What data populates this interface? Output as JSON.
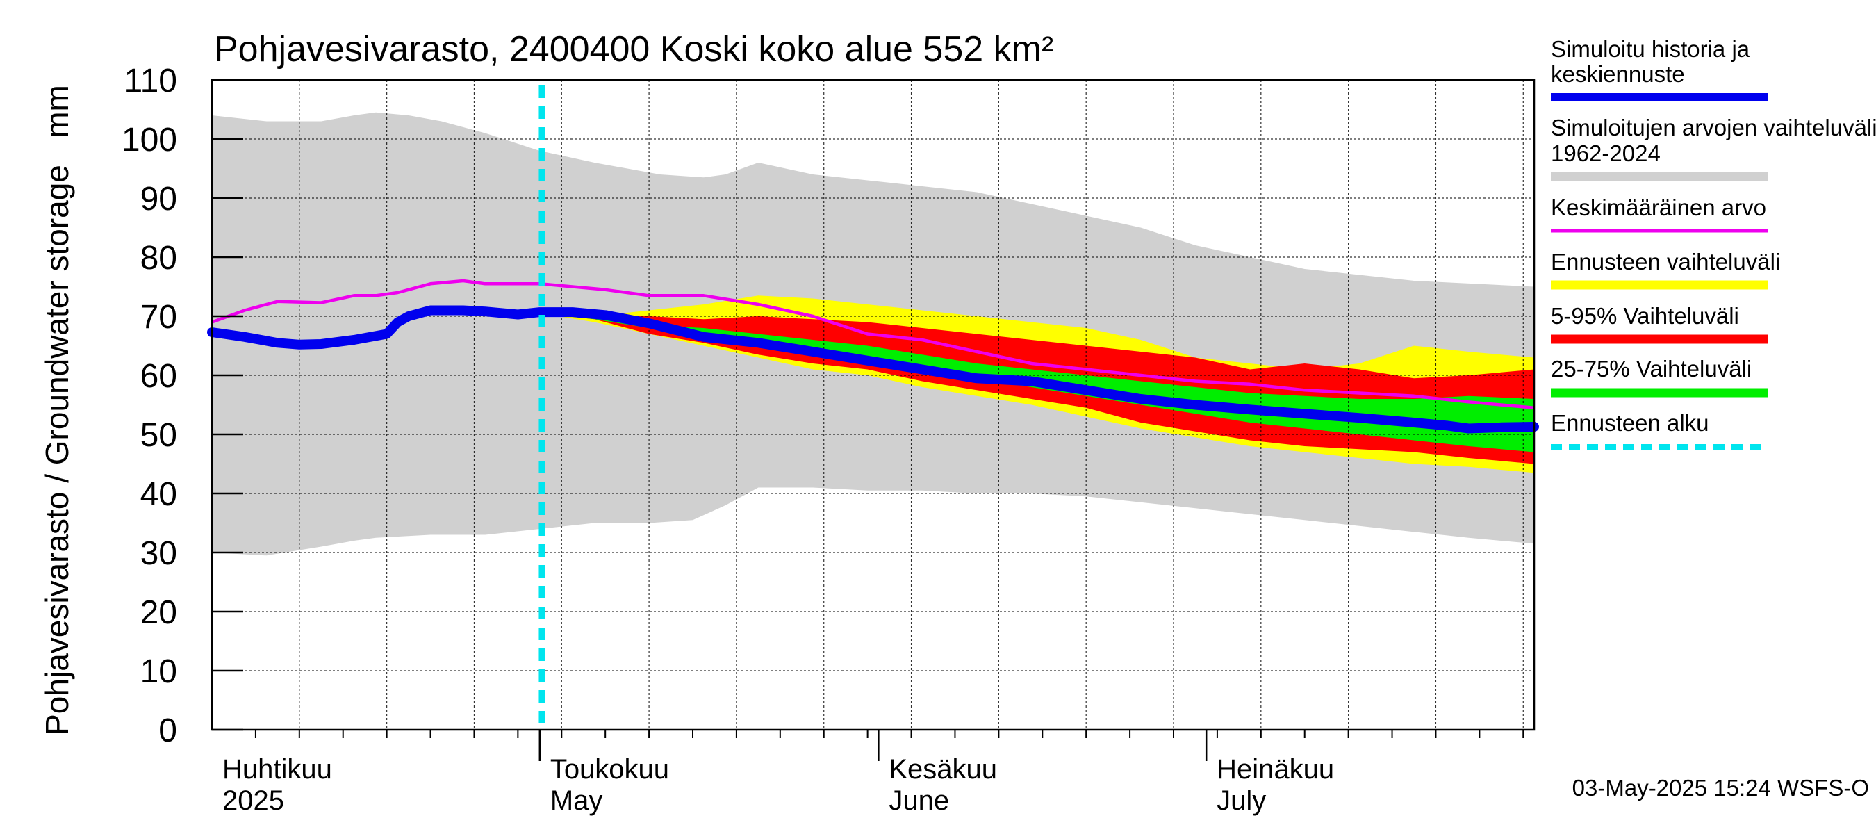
{
  "chart_data": {
    "type": "area",
    "title": "Pohjavesivarasto, 2400400 Koski koko alue 552 km²",
    "ylabel": "Pohjavesivarasto / Groundwater storage   mm",
    "ylim": [
      0,
      110
    ],
    "yticks": [
      0,
      10,
      20,
      30,
      40,
      50,
      60,
      70,
      80,
      90,
      100,
      110
    ],
    "xlim": [
      0,
      121
    ],
    "month_boundaries": [
      30,
      61,
      91
    ],
    "month_labels": [
      {
        "fi": "Huhtikuu",
        "en": "2025",
        "day": 0
      },
      {
        "fi": "Toukokuu",
        "en": "May",
        "day": 30
      },
      {
        "fi": "Kesäkuu",
        "en": "June",
        "day": 61
      },
      {
        "fi": "Heinäkuu",
        "en": "July",
        "day": 91
      }
    ],
    "forecast_start_day": 30.2,
    "timestamp": "03-May-2025 15:24 WSFS-O",
    "legend": [
      {
        "label": "Simuloitu historia ja keskiennuste",
        "color": "#0000ee",
        "style": "line"
      },
      {
        "label": "Simuloitujen arvojen vaihteluväli 1962-2024",
        "color": "#d0d0d0",
        "style": "band"
      },
      {
        "label": "Keskimääräinen arvo",
        "color": "#ee00ee",
        "style": "line"
      },
      {
        "label": "Ennusteen vaihteluväli",
        "color": "#ffff00",
        "style": "band"
      },
      {
        "label": "5-95% Vaihteluväli",
        "color": "#ff0000",
        "style": "band"
      },
      {
        "label": "25-75% Vaihteluväli",
        "color": "#00ee00",
        "style": "band"
      },
      {
        "label": "Ennusteen alku",
        "color": "#00e5ee",
        "style": "dashed"
      }
    ],
    "series": [
      {
        "name": "hist_upper",
        "x": [
          0,
          5,
          10,
          13,
          15,
          18,
          21,
          25,
          30,
          35,
          41,
          45,
          47,
          50,
          55,
          60,
          65,
          70,
          75,
          80,
          85,
          90,
          95,
          100,
          110,
          121
        ],
        "values": [
          104,
          103,
          103,
          104,
          104.5,
          104,
          103,
          101,
          98,
          96,
          94,
          93.5,
          94,
          96,
          94,
          93,
          92,
          91,
          89,
          87,
          85,
          82,
          80,
          78,
          76,
          75
        ]
      },
      {
        "name": "hist_lower",
        "x": [
          0,
          5,
          10,
          13,
          15,
          20,
          25,
          30,
          35,
          40,
          44,
          47,
          50,
          55,
          60,
          65,
          70,
          75,
          80,
          85,
          90,
          95,
          100,
          105,
          110,
          115,
          121
        ],
        "values": [
          30,
          29.5,
          31,
          32,
          32.5,
          33,
          33,
          34,
          35,
          35,
          35.5,
          38,
          41,
          41,
          40.5,
          40.5,
          40,
          40,
          39.5,
          38.5,
          37.5,
          36.5,
          35.5,
          34.5,
          33.5,
          32.5,
          31.5
        ]
      },
      {
        "name": "forecast_max",
        "x": [
          30,
          35,
          40,
          45,
          50,
          55,
          60,
          65,
          70,
          75,
          80,
          85,
          90,
          95,
          100,
          105,
          110,
          115,
          121
        ],
        "values": [
          70.5,
          70,
          71,
          72,
          73.5,
          73,
          72,
          71,
          70,
          69,
          68,
          66,
          63,
          62,
          61,
          62,
          65,
          64,
          63
        ]
      },
      {
        "name": "forecast_min",
        "x": [
          30,
          35,
          40,
          45,
          50,
          55,
          60,
          65,
          70,
          75,
          80,
          85,
          90,
          95,
          100,
          105,
          110,
          115,
          121
        ],
        "values": [
          70.5,
          69,
          67,
          65,
          63,
          61,
          60,
          58,
          56.5,
          55,
          53,
          51,
          49.5,
          48,
          47,
          46,
          45,
          44.5,
          43.5
        ]
      },
      {
        "name": "p95",
        "x": [
          30,
          35,
          40,
          45,
          50,
          55,
          60,
          65,
          70,
          75,
          80,
          85,
          90,
          95,
          100,
          105,
          110,
          115,
          121
        ],
        "values": [
          70.5,
          70,
          70,
          69.5,
          70,
          69.5,
          69,
          68,
          67,
          66,
          65,
          64,
          63,
          61,
          62,
          61,
          59.5,
          60,
          61
        ]
      },
      {
        "name": "p05",
        "x": [
          30,
          35,
          40,
          45,
          50,
          55,
          60,
          65,
          70,
          75,
          80,
          85,
          90,
          95,
          100,
          105,
          110,
          115,
          121
        ],
        "values": [
          70.5,
          69.5,
          67,
          65.5,
          63.5,
          62,
          61,
          59,
          57.5,
          56,
          54.5,
          52,
          50.5,
          49,
          48,
          47.5,
          47,
          46,
          45
        ]
      },
      {
        "name": "p75",
        "x": [
          30,
          35,
          40,
          45,
          50,
          55,
          60,
          65,
          70,
          75,
          80,
          85,
          90,
          95,
          100,
          105,
          110,
          115,
          121
        ],
        "values": [
          70.5,
          70,
          68.5,
          68,
          67,
          66,
          65,
          63.5,
          62,
          61,
          60,
          59,
          58,
          57,
          56.5,
          56,
          56,
          56.5,
          56
        ]
      },
      {
        "name": "p25",
        "x": [
          30,
          35,
          40,
          45,
          50,
          55,
          60,
          65,
          70,
          75,
          80,
          85,
          90,
          95,
          100,
          105,
          110,
          115,
          121
        ],
        "values": [
          70.5,
          69.5,
          68,
          66.5,
          65.5,
          64,
          62.5,
          61,
          59.5,
          58,
          56.5,
          55,
          53.5,
          52,
          51,
          50,
          49,
          48,
          47
        ]
      },
      {
        "name": "Keskimääräinen arvo",
        "x": [
          0,
          3,
          6,
          10,
          13,
          15,
          17,
          20,
          23,
          25,
          28,
          30,
          33,
          36,
          40,
          45,
          50,
          55,
          60,
          65,
          70,
          75,
          80,
          85,
          90,
          95,
          100,
          105,
          110,
          115,
          121
        ],
        "values": [
          69,
          71,
          72.5,
          72.3,
          73.5,
          73.5,
          74,
          75.5,
          76,
          75.5,
          75.5,
          75.5,
          75,
          74.5,
          73.5,
          73.5,
          72,
          70,
          67,
          66,
          64,
          62,
          61,
          60,
          59,
          58.5,
          57.5,
          57,
          56.5,
          55.5,
          54.5
        ]
      },
      {
        "name": "Simuloitu historia ja keskiennuste",
        "x": [
          0,
          3,
          6,
          8,
          10,
          13,
          16,
          17,
          18,
          20,
          23,
          25,
          28,
          30,
          33,
          36,
          40,
          45,
          50,
          55,
          60,
          65,
          70,
          75,
          80,
          85,
          90,
          95,
          100,
          105,
          110,
          113,
          115,
          118,
          121
        ],
        "values": [
          67.3,
          66.5,
          65.5,
          65.2,
          65.3,
          66,
          67,
          69,
          70,
          71,
          71,
          70.8,
          70.3,
          70.7,
          70.7,
          70.2,
          68.8,
          66.5,
          65.5,
          64,
          62.5,
          61,
          59.5,
          59,
          57.5,
          56,
          55,
          54.2,
          53.5,
          52.8,
          52,
          51.5,
          51,
          51.2,
          51.3
        ]
      }
    ]
  }
}
